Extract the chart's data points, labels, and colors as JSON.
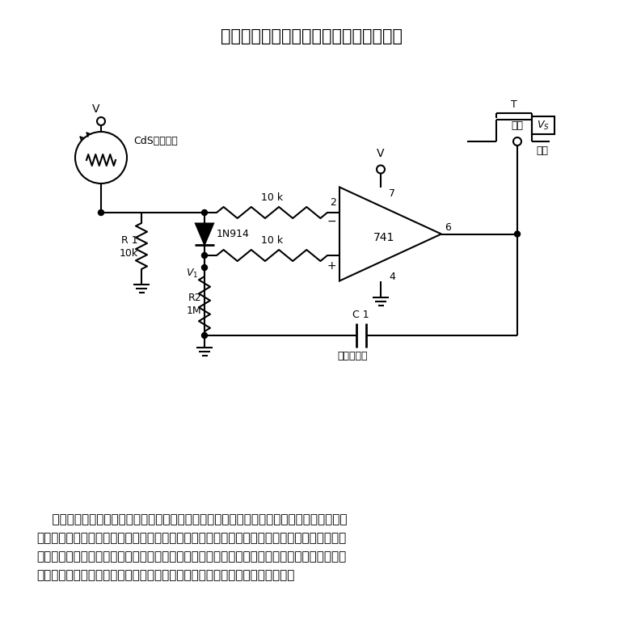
{
  "title": "单稳态光敏电阻电路具有自调节触发电平",
  "title_fontsize": 15,
  "bg_color": "#ffffff",
  "line_color": "#000000",
  "description_lines": [
    "    本光敏电阻电路可提供自动阈值调节。单稳态动作可防止不希望有的重复触发。该电路仅用",
    "一只运算放大器集成电路，它可提供如下功能：自动调节触发电平以适应不同的光源；环境光和",
    "失调的改变；自身固有的单稳态动作，以提供具有预置宽度的单一输出脉冲；触发后提高阈电平",
    "的和加速转换过程的反馈动作。在转换过程中，反馈还可消除电路的振荡趋势。"
  ],
  "desc_fontsize": 11
}
